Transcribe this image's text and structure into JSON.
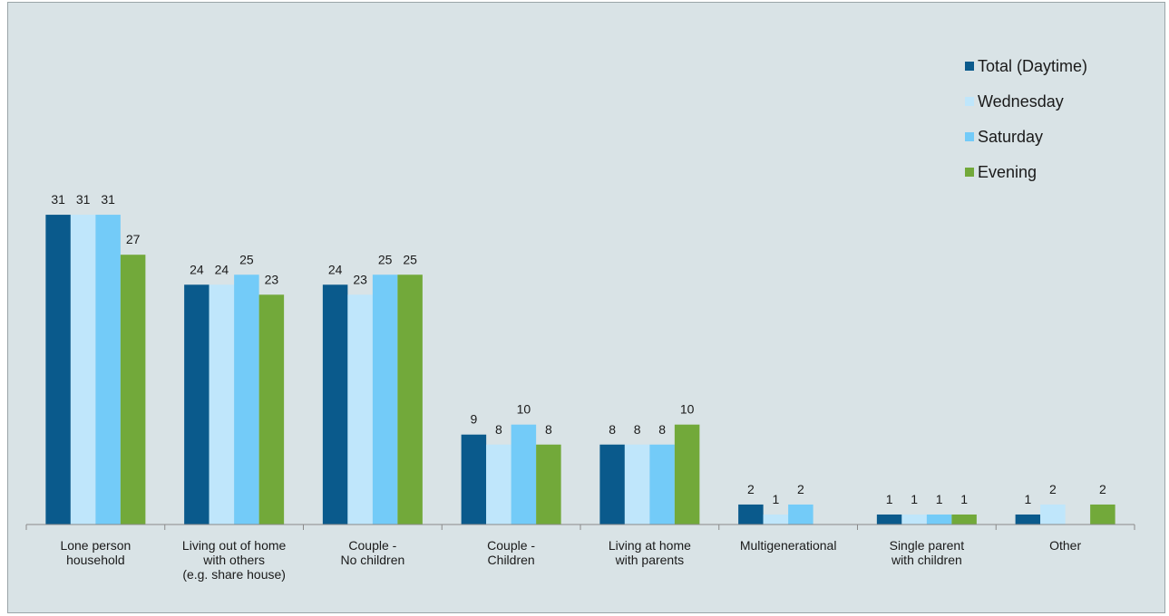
{
  "chart_data": {
    "type": "bar",
    "title": "",
    "xlabel": "",
    "ylabel": "",
    "ylim": [
      0,
      32
    ],
    "grid": false,
    "legend_position": "top-right",
    "categories": [
      [
        "Lone person",
        "household"
      ],
      [
        "Living out of home",
        "with others",
        "(e.g. share house)"
      ],
      [
        "Couple -",
        "No children"
      ],
      [
        "Couple -",
        "Children"
      ],
      [
        "Living at home",
        "with parents"
      ],
      [
        "Multigenerational"
      ],
      [
        "Single parent",
        "with children"
      ],
      [
        "Other"
      ]
    ],
    "series": [
      {
        "name": "Total (Daytime)",
        "color": "#0a5a8c",
        "values": [
          31,
          24,
          24,
          9,
          8,
          2,
          1,
          1
        ]
      },
      {
        "name": "Wednesday",
        "color": "#bfe6fb",
        "values": [
          31,
          24,
          23,
          8,
          8,
          1,
          1,
          2
        ]
      },
      {
        "name": "Saturday",
        "color": "#73cbf8",
        "values": [
          31,
          25,
          25,
          10,
          8,
          2,
          1,
          null
        ]
      },
      {
        "name": "Evening",
        "color": "#72a93a",
        "values": [
          27,
          23,
          25,
          8,
          10,
          null,
          1,
          2
        ]
      }
    ]
  }
}
